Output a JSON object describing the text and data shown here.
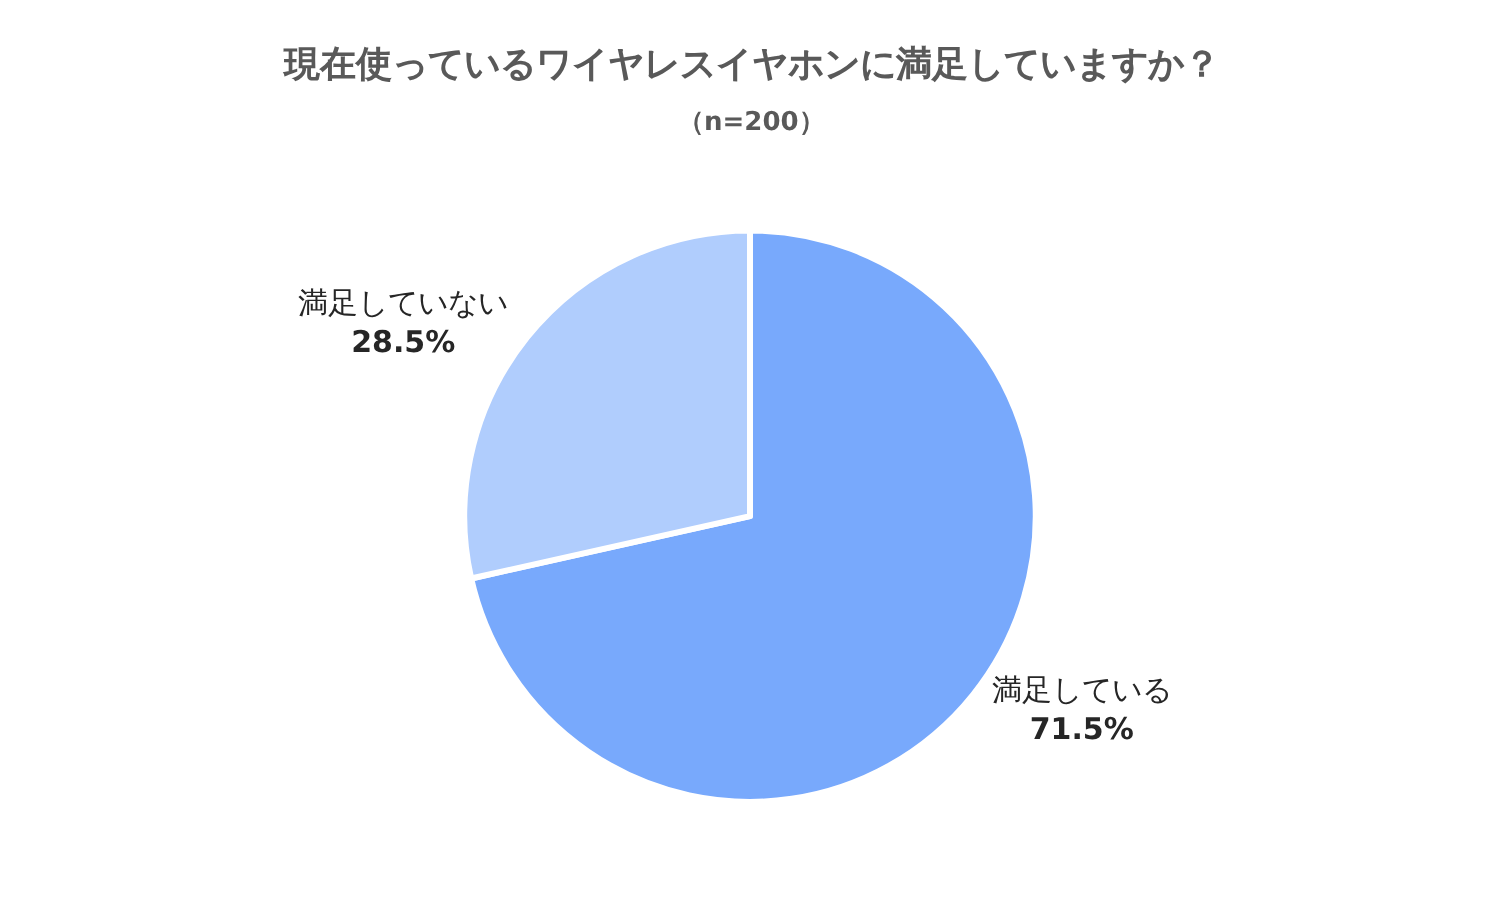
{
  "chart_data": {
    "type": "pie",
    "title": "現在使っているワイヤレスイヤホンに満足していますか？",
    "subtitle": "（n=200）",
    "categories": [
      "満足している",
      "満足していない"
    ],
    "values": [
      71.5,
      28.5
    ],
    "value_labels": [
      "71.5%",
      "28.5%"
    ],
    "colors": [
      "#78a9fc",
      "#b0cdfd"
    ],
    "legend": false
  }
}
